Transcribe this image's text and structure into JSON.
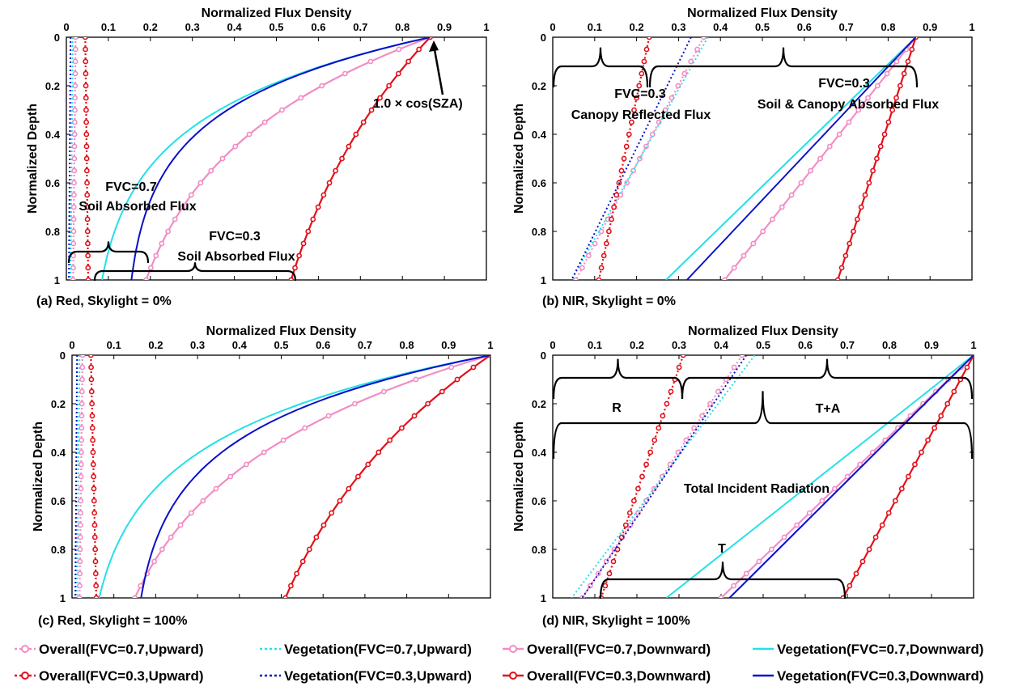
{
  "colors": {
    "pink": "#F28CC4",
    "red": "#E3101A",
    "cyan": "#22E0E8",
    "blue": "#0A10C8",
    "black": "#000000"
  },
  "legend": [
    {
      "label": "Overall(FVC=0.7,Upward)",
      "color": "#F28CC4",
      "style": "dotted-marker"
    },
    {
      "label": "Vegetation(FVC=0.7,Upward)",
      "color": "#22E0E8",
      "style": "dotted"
    },
    {
      "label": "Overall(FVC=0.7,Downward)",
      "color": "#F28CC4",
      "style": "solid-marker"
    },
    {
      "label": "Vegetation(FVC=0.7,Downward)",
      "color": "#22E0E8",
      "style": "solid"
    },
    {
      "label": "Overall(FVC=0.3,Upward)",
      "color": "#E3101A",
      "style": "dotted-marker"
    },
    {
      "label": "Vegetation(FVC=0.3,Upward)",
      "color": "#0A10C8",
      "style": "dotted"
    },
    {
      "label": "Overall(FVC=0.3,Downward)",
      "color": "#E3101A",
      "style": "solid-marker"
    },
    {
      "label": "Vegetation(FVC=0.3,Downward)",
      "color": "#0A10C8",
      "style": "solid"
    }
  ],
  "chart_data": [
    {
      "type": "line",
      "caption": "(a) Red, Skylight = 0%",
      "xlabel": "Normalized Flux Density",
      "ylabel": "Normalized Depth",
      "xlim": [
        0,
        1
      ],
      "ylim": [
        0,
        1
      ],
      "xticks": [
        "0",
        "0.1",
        "0.2",
        "0.3",
        "0.4",
        "0.5",
        "0.6",
        "0.7",
        "0.8",
        "0.9",
        "1"
      ],
      "yticks": [
        "0",
        "0.2",
        "0.4",
        "0.6",
        "0.8",
        "1"
      ],
      "series": [
        {
          "key": "ov07_up",
          "depth": [
            0,
            1
          ],
          "flux": [
            0.022,
            0.016
          ]
        },
        {
          "key": "veg07_up",
          "depth": [
            0,
            1
          ],
          "flux": [
            0.015,
            0.01
          ]
        },
        {
          "key": "ov03_up",
          "depth": [
            0,
            1
          ],
          "flux": [
            0.045,
            0.052
          ]
        },
        {
          "key": "veg03_up",
          "depth": [
            0,
            1
          ],
          "flux": [
            0.01,
            0.006
          ]
        },
        {
          "key": "ov07_down",
          "start": 0.866,
          "end": 0.19,
          "k": 2.0
        },
        {
          "key": "veg07_down",
          "start": 0.866,
          "end": 0.085,
          "k": 3.2
        },
        {
          "key": "ov03_down",
          "start": 0.866,
          "end": 0.535,
          "k": 1.1
        },
        {
          "key": "veg03_down",
          "start": 0.866,
          "end": 0.155,
          "k": 3.6
        }
      ],
      "annotations": [
        {
          "text": "1.0 × cos(SZA)"
        },
        {
          "text": "FVC=0.7"
        },
        {
          "text": "Soil Absorbed Flux"
        },
        {
          "text": "FVC=0.3"
        },
        {
          "text": "Soil Absorbed Flux"
        }
      ]
    },
    {
      "type": "line",
      "caption": "(b) NIR, Skylight = 0%",
      "xlabel": "Normalized Flux Density",
      "ylabel": "Normalized Depth",
      "xlim": [
        0,
        1
      ],
      "ylim": [
        0,
        1
      ],
      "xticks": [
        "0",
        "0.1",
        "0.2",
        "0.3",
        "0.4",
        "0.5",
        "0.6",
        "0.7",
        "0.8",
        "0.9",
        "1"
      ],
      "yticks": [
        "0",
        "0.2",
        "0.4",
        "0.6",
        "0.8",
        "1"
      ],
      "series": [
        {
          "key": "ov07_up",
          "depth": [
            0,
            1
          ],
          "flux": [
            0.36,
            0.055
          ]
        },
        {
          "key": "veg07_up",
          "depth": [
            0,
            1
          ],
          "flux": [
            0.37,
            0.045
          ]
        },
        {
          "key": "ov03_up",
          "depth": [
            0,
            1
          ],
          "flux": [
            0.23,
            0.11
          ]
        },
        {
          "key": "veg03_up",
          "depth": [
            0,
            1
          ],
          "flux": [
            0.33,
            0.045
          ]
        },
        {
          "key": "ov07_down",
          "depth": [
            0,
            1
          ],
          "flux": [
            0.866,
            0.41
          ]
        },
        {
          "key": "veg07_down",
          "depth": [
            0,
            1
          ],
          "flux": [
            0.866,
            0.27
          ]
        },
        {
          "key": "ov03_down",
          "depth": [
            0,
            1
          ],
          "flux": [
            0.866,
            0.68
          ]
        },
        {
          "key": "veg03_down",
          "depth": [
            0,
            1
          ],
          "flux": [
            0.866,
            0.32
          ]
        }
      ],
      "annotations": [
        {
          "text": "FVC=0.3"
        },
        {
          "text": "Canopy Reflected Flux"
        },
        {
          "text": "FVC=0.3"
        },
        {
          "text": "Soil & Canopy Absorbed Flux"
        }
      ]
    },
    {
      "type": "line",
      "caption": "(c) Red, Skylight = 100%",
      "xlabel": "Normalized Flux Density",
      "ylabel": "Normalized Depth",
      "xlim": [
        0,
        1
      ],
      "ylim": [
        0,
        1
      ],
      "xticks": [
        "0",
        "0.1",
        "0.2",
        "0.3",
        "0.4",
        "0.5",
        "0.6",
        "0.7",
        "0.8",
        "0.9",
        "1"
      ],
      "yticks": [
        "0",
        "0.2",
        "0.4",
        "0.6",
        "0.8",
        "1"
      ],
      "series": [
        {
          "key": "ov07_up",
          "depth": [
            0,
            1
          ],
          "flux": [
            0.025,
            0.018
          ]
        },
        {
          "key": "veg07_up",
          "depth": [
            0,
            1
          ],
          "flux": [
            0.018,
            0.012
          ]
        },
        {
          "key": "ov03_up",
          "depth": [
            0,
            1
          ],
          "flux": [
            0.045,
            0.058
          ]
        },
        {
          "key": "veg03_up",
          "depth": [
            0,
            1
          ],
          "flux": [
            0.012,
            0.008
          ]
        },
        {
          "key": "ov07_down",
          "start": 1.0,
          "end": 0.15,
          "k": 2.0
        },
        {
          "key": "veg07_down",
          "start": 1.0,
          "end": 0.065,
          "k": 3.1
        },
        {
          "key": "ov03_down",
          "start": 1.0,
          "end": 0.51,
          "k": 1.2
        },
        {
          "key": "veg03_down",
          "start": 1.0,
          "end": 0.165,
          "k": 3.4
        }
      ],
      "annotations": []
    },
    {
      "type": "line",
      "caption": "(d) NIR, Skylight = 100%",
      "xlabel": "Normalized Flux Density",
      "ylabel": "Normalized Depth",
      "xlim": [
        0,
        1
      ],
      "ylim": [
        0,
        1
      ],
      "xticks": [
        "0",
        "0.1",
        "0.2",
        "0.3",
        "0.4",
        "0.5",
        "0.6",
        "0.7",
        "0.8",
        "0.9",
        "1"
      ],
      "yticks": [
        "0",
        "0.2",
        "0.4",
        "0.6",
        "0.8",
        "1"
      ],
      "series": [
        {
          "key": "ov07_up",
          "depth": [
            0,
            1
          ],
          "flux": [
            0.45,
            0.07
          ]
        },
        {
          "key": "veg07_up",
          "depth": [
            0,
            1
          ],
          "flux": [
            0.48,
            0.045
          ]
        },
        {
          "key": "ov03_up",
          "depth": [
            0,
            1
          ],
          "flux": [
            0.31,
            0.115
          ]
        },
        {
          "key": "veg03_up",
          "depth": [
            0,
            1
          ],
          "flux": [
            0.46,
            0.07
          ]
        },
        {
          "key": "ov07_down",
          "depth": [
            0,
            1
          ],
          "flux": [
            1.0,
            0.4
          ]
        },
        {
          "key": "veg07_down",
          "depth": [
            0,
            1
          ],
          "flux": [
            1.0,
            0.27
          ]
        },
        {
          "key": "ov03_down",
          "depth": [
            0,
            1
          ],
          "flux": [
            1.0,
            0.69
          ]
        },
        {
          "key": "veg03_down",
          "depth": [
            0,
            1
          ],
          "flux": [
            1.0,
            0.42
          ]
        }
      ],
      "annotations": [
        {
          "text": "R"
        },
        {
          "text": "T+A"
        },
        {
          "text": "Total Incident Radiation"
        },
        {
          "text": "T"
        }
      ]
    }
  ]
}
